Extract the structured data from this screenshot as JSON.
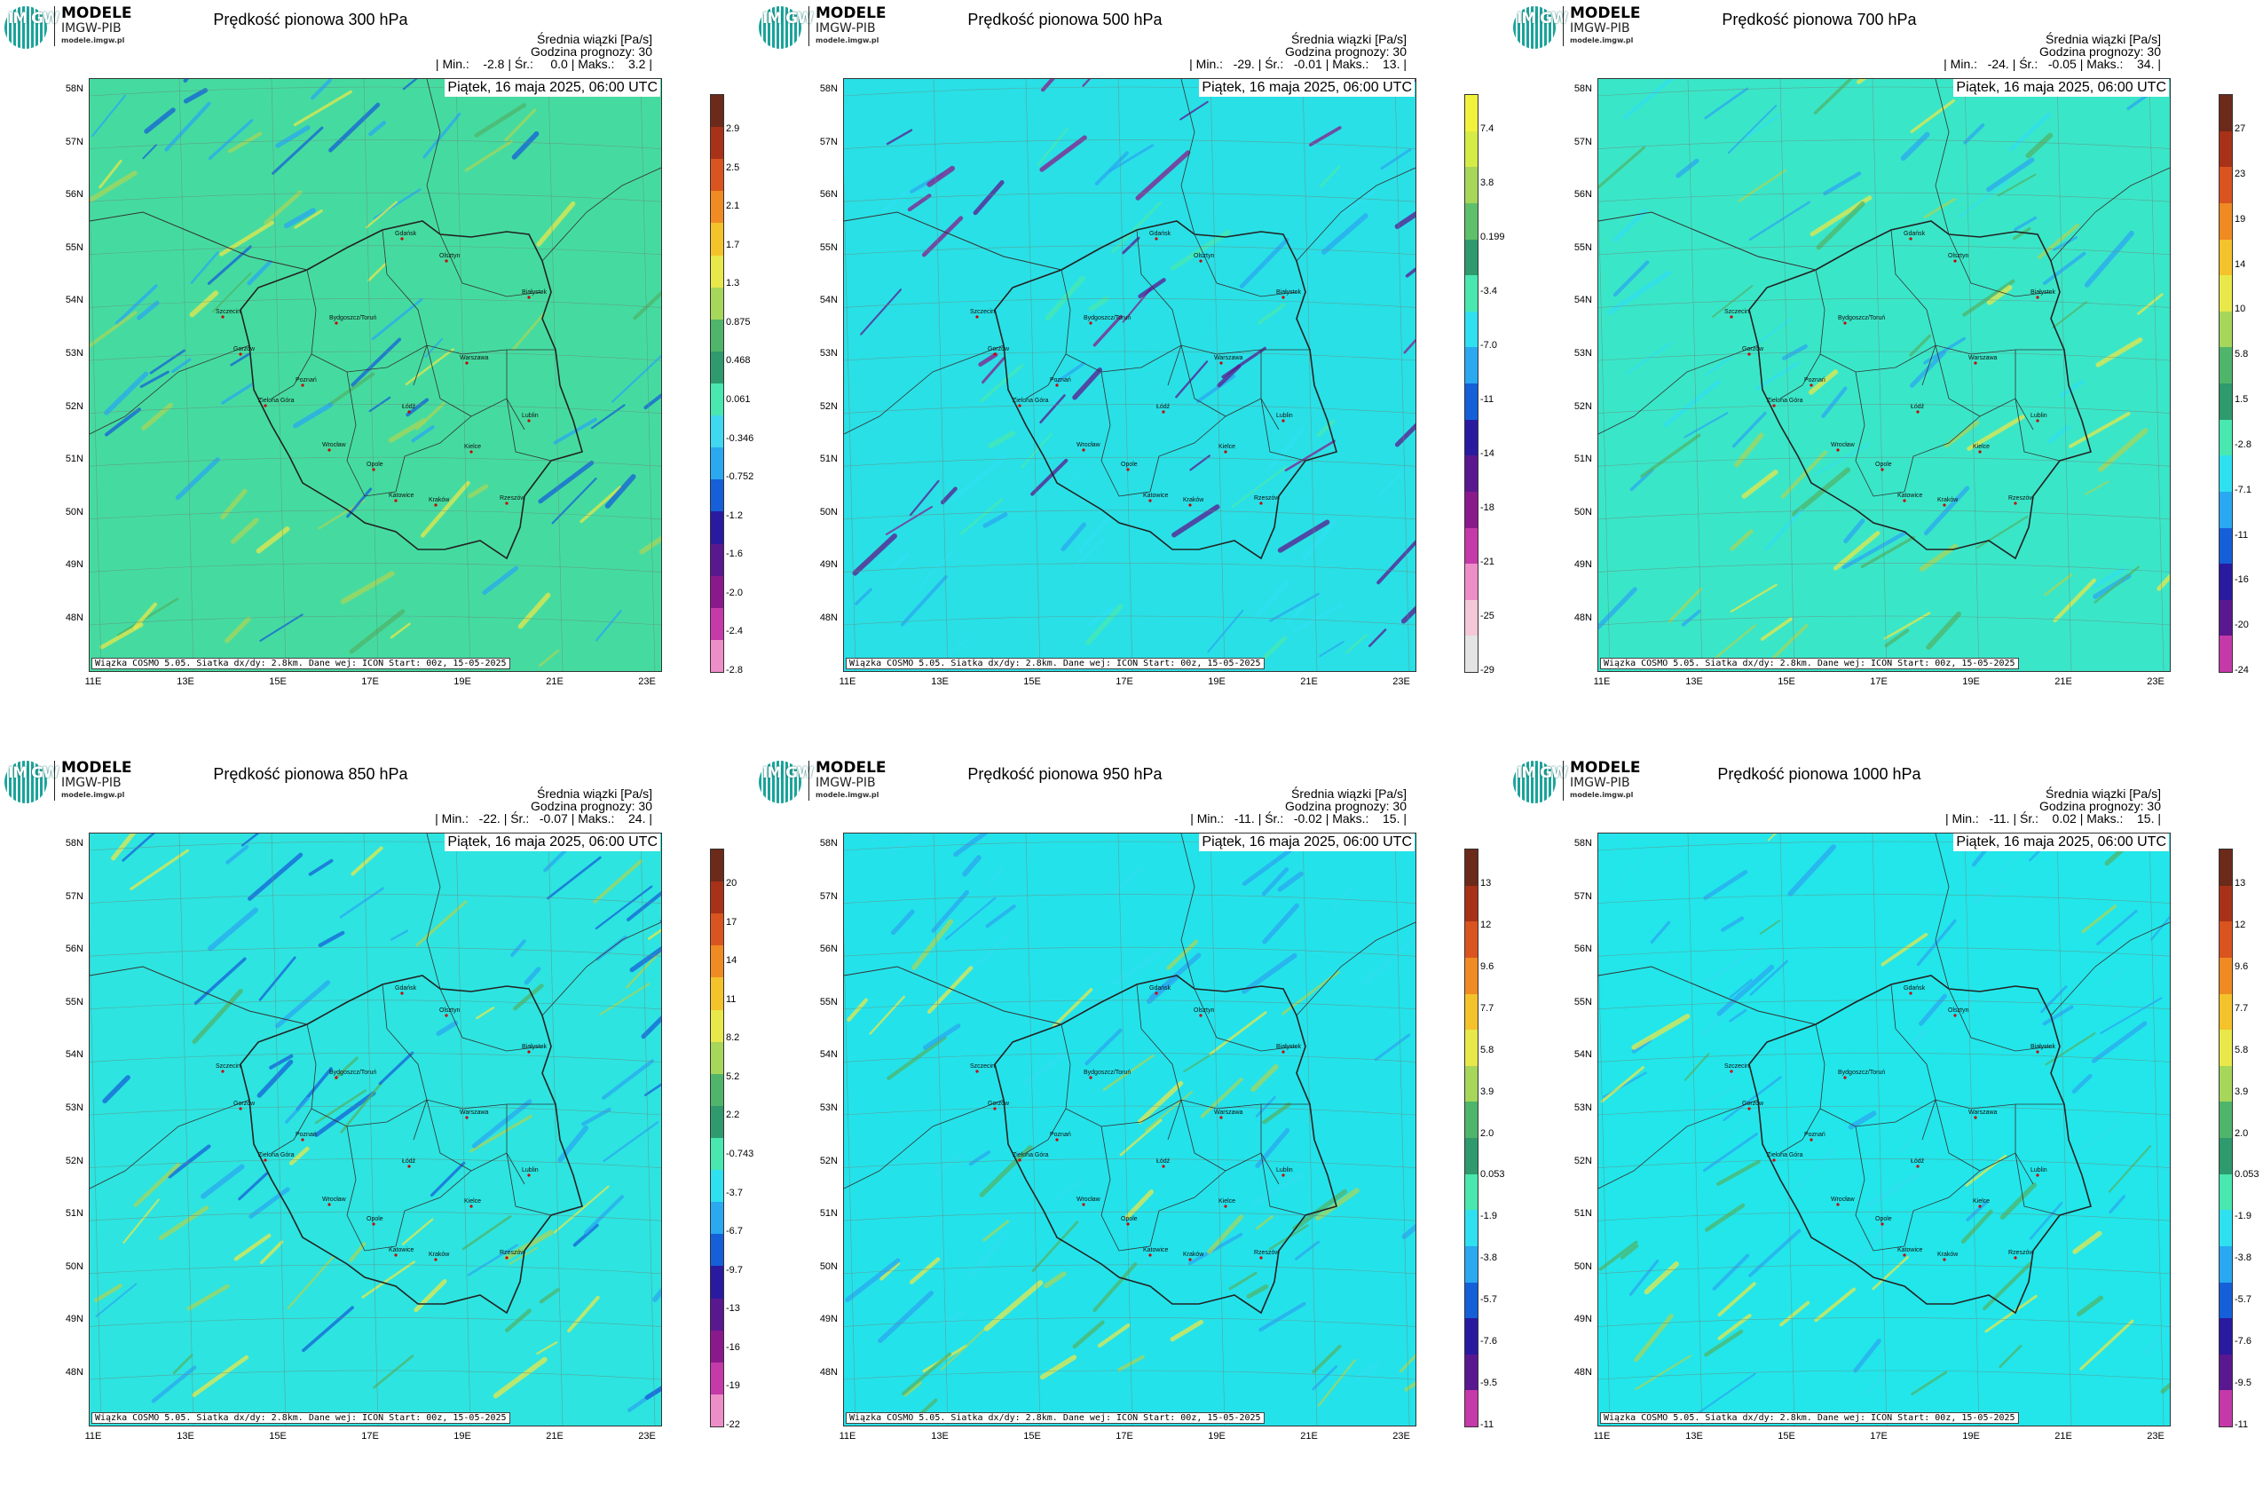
{
  "logo": {
    "mark": "IM GW",
    "line1": "MODELE",
    "line2": "IMGW-PIB",
    "line3": "modele.imgw.pl"
  },
  "common": {
    "date": "Piątek, 16 maja 2025, 06:00 UTC",
    "credit": "Wiązka COSMO 5.05. Siatka dx/dy: 2.8km. Dane wej: ICON Start: 00z, 15-05-2025",
    "ensemble_label": "Średnia wiązki [Pa/s]",
    "forecast_hour": "Godzina prognozy: 30",
    "lat_labels": [
      "58N",
      "57N",
      "56N",
      "55N",
      "54N",
      "53N",
      "52N",
      "51N",
      "50N",
      "49N",
      "48N"
    ],
    "lon_labels": [
      "11E",
      "13E",
      "15E",
      "17E",
      "19E",
      "21E",
      "23E"
    ],
    "cities": [
      "Gdańsk",
      "Olsztyn",
      "Szczecin",
      "Białystok",
      "Bydgoszcz/Toruń",
      "Gorzów",
      "Poznań",
      "Warszawa",
      "Zielona Góra",
      "Łódź",
      "Lublin",
      "Wrocław",
      "Kielce",
      "Opole",
      "Katowice",
      "Kraków",
      "Rzeszów"
    ]
  },
  "panels": [
    {
      "title": "Prędkość pionowa 300 hPa",
      "stats": "| Min.:    -2.8 | Śr.:     0.0 | Maks.:    3.2 |",
      "min": -2.8,
      "mean": 0.0,
      "max": 3.2,
      "colorbar_ticks": [
        "2.9",
        "2.5",
        "2.1",
        "1.7",
        "1.3",
        "0.875",
        "0.468",
        "0.061",
        "-0.346",
        "-0.752",
        "-1.2",
        "-1.6",
        "-2.0",
        "-2.4",
        "-2.8"
      ],
      "colorbar_colors": [
        "#6b2a1a",
        "#a83218",
        "#d9541f",
        "#f08a22",
        "#f4c22b",
        "#e8e84a",
        "#a6d65a",
        "#4fb56a",
        "#2e9a6d",
        "#48e8b0",
        "#3fd8f0",
        "#2aa8f0",
        "#1560d8",
        "#2a1aa0",
        "#5a1890",
        "#8a1a8c",
        "#c43aa8",
        "#ee8ec8"
      ],
      "field": "#45dba0"
    },
    {
      "title": "Prędkość pionowa 500 hPa",
      "stats": "| Min.:   -29. | Śr.:   -0.01 | Maks.:    13. |",
      "min": -29,
      "mean": -0.01,
      "max": 13,
      "colorbar_ticks": [
        "7.4",
        "3.8",
        "0.199",
        "-3.4",
        "-7.0",
        "-11",
        "-14",
        "-18",
        "-21",
        "-25",
        "-29"
      ],
      "colorbar_colors": [
        "#f2f23c",
        "#d6ec46",
        "#a6d65a",
        "#5fc06a",
        "#2e9a6d",
        "#48e8b0",
        "#2ee0f0",
        "#2aa8f0",
        "#1560d8",
        "#2a1aa0",
        "#5a1890",
        "#8a1a8c",
        "#c43aa8",
        "#ee8ec8",
        "#f4c8d8",
        "#e4e4e4"
      ],
      "field": "#29e0e6"
    },
    {
      "title": "Prędkość pionowa 700 hPa",
      "stats": "| Min.:   -24. | Śr.:   -0.05 | Maks.:    34. |",
      "min": -24,
      "mean": -0.05,
      "max": 34,
      "colorbar_ticks": [
        "27",
        "23",
        "19",
        "14",
        "10",
        "5.8",
        "1.5",
        "-2.8",
        "-7.1",
        "-11",
        "-16",
        "-20",
        "-24"
      ],
      "colorbar_colors": [
        "#6b2a1a",
        "#a83218",
        "#d9541f",
        "#f08a22",
        "#f4c22b",
        "#e8e84a",
        "#a6d65a",
        "#4fb56a",
        "#2e9a6d",
        "#48e8b0",
        "#2ee0f0",
        "#2aa8f0",
        "#1560d8",
        "#2a1aa0",
        "#5a1890",
        "#c43aa8"
      ],
      "field": "#3ae6c8"
    },
    {
      "title": "Prędkość pionowa 850 hPa",
      "stats": "| Min.:   -22. | Śr.:   -0.07 | Maks.:    24. |",
      "min": -22,
      "mean": -0.07,
      "max": 24,
      "colorbar_ticks": [
        "20",
        "17",
        "14",
        "11",
        "8.2",
        "5.2",
        "2.2",
        "-0.743",
        "-3.7",
        "-6.7",
        "-9.7",
        "-13",
        "-16",
        "-19",
        "-22"
      ],
      "colorbar_colors": [
        "#6b2a1a",
        "#a83218",
        "#d9541f",
        "#f08a22",
        "#f4c22b",
        "#e8e84a",
        "#a6d65a",
        "#4fb56a",
        "#2e9a6d",
        "#48e8b0",
        "#2ee0f0",
        "#2aa8f0",
        "#1560d8",
        "#2a1aa0",
        "#5a1890",
        "#8a1a8c",
        "#c43aa8",
        "#ee8ec8"
      ],
      "field": "#2de4e0"
    },
    {
      "title": "Prędkość pionowa 950 hPa",
      "stats": "| Min.:   -11. | Śr.:   -0.02 | Maks.:    15. |",
      "min": -11,
      "mean": -0.02,
      "max": 15,
      "colorbar_ticks": [
        "13",
        "12",
        "9.6",
        "7.7",
        "5.8",
        "3.9",
        "2.0",
        "0.053",
        "-1.9",
        "-3.8",
        "-5.7",
        "-7.6",
        "-9.5",
        "-11"
      ],
      "colorbar_colors": [
        "#6b2a1a",
        "#a83218",
        "#d9541f",
        "#f08a22",
        "#f4c22b",
        "#e8e84a",
        "#a6d65a",
        "#4fb56a",
        "#2e9a6d",
        "#48e8b0",
        "#2ee0f0",
        "#2aa8f0",
        "#1560d8",
        "#2a1aa0",
        "#5a1890",
        "#c43aa8"
      ],
      "field": "#24e2ea"
    },
    {
      "title": "Prędkość pionowa 1000 hPa",
      "stats": "| Min.:   -11. | Śr.:    0.02 | Maks.:    15. |",
      "min": -11,
      "mean": 0.02,
      "max": 15,
      "colorbar_ticks": [
        "13",
        "12",
        "9.6",
        "7.7",
        "5.8",
        "3.9",
        "2.0",
        "0.053",
        "-1.9",
        "-3.8",
        "-5.7",
        "-7.6",
        "-9.5",
        "-11"
      ],
      "colorbar_colors": [
        "#6b2a1a",
        "#a83218",
        "#d9541f",
        "#f08a22",
        "#f4c22b",
        "#e8e84a",
        "#a6d65a",
        "#4fb56a",
        "#2e9a6d",
        "#48e8b0",
        "#2ee0f0",
        "#2aa8f0",
        "#1560d8",
        "#2a1aa0",
        "#5a1890",
        "#c43aa8"
      ],
      "field": "#22e6ea"
    }
  ]
}
